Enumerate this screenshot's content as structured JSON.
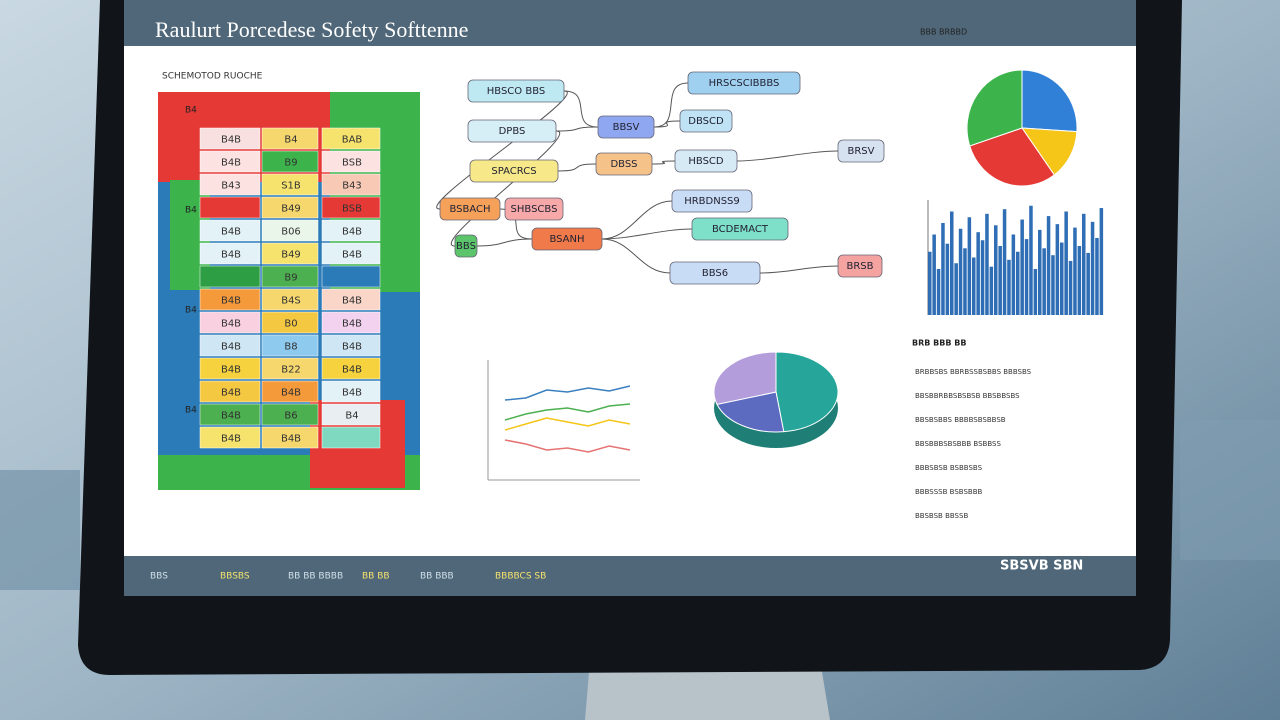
{
  "header": {
    "title": "Raulurt Porcedese Sofety Softtenne"
  },
  "grid": {
    "subtitle": "SCHEMOTOD RUOCHE",
    "side_labels": [
      "B4",
      "B4",
      "B4",
      "B4"
    ],
    "rows": [
      [
        {
          "text": "B4B",
          "color": "#f9e0e0"
        },
        {
          "text": "B4",
          "color": "#f5d76e"
        },
        {
          "text": "BAB",
          "color": "#f5e36e"
        }
      ],
      [
        {
          "text": "B4B",
          "color": "#fde2e2"
        },
        {
          "text": "B9",
          "color": "#3cb44b"
        },
        {
          "text": "BSB",
          "color": "#fde2e2"
        }
      ],
      [
        {
          "text": "B43",
          "color": "#fde2e2"
        },
        {
          "text": "S1B",
          "color": "#f5e36e"
        },
        {
          "text": "B43",
          "color": "#f8c9b5"
        }
      ],
      [
        {
          "color": "#e53935"
        },
        {
          "text": "B49",
          "color": "#f5d76e"
        },
        {
          "text": "BSB",
          "color": "#e53935"
        }
      ],
      [
        {
          "text": "B4B",
          "color": "#e3f2f7"
        },
        {
          "text": "B06",
          "color": "#eaf6ea"
        },
        {
          "text": "B4B",
          "color": "#e3f2f7"
        }
      ],
      [
        {
          "text": "B4B",
          "color": "#e3f2f7"
        },
        {
          "text": "B49",
          "color": "#f5e36e"
        },
        {
          "text": "B4B",
          "color": "#e3f2f7"
        }
      ],
      [
        {
          "color": "#2e9e44"
        },
        {
          "text": "B9",
          "color": "#4caf50"
        },
        {
          "color": "#2b7bb9"
        }
      ],
      [
        {
          "text": "B4B",
          "color": "#f59a3b"
        },
        {
          "text": "B4S",
          "color": "#f5d76e"
        },
        {
          "text": "B4B",
          "color": "#f9d6c8"
        }
      ],
      [
        {
          "text": "B4B",
          "color": "#f8d0e0"
        },
        {
          "text": "B0",
          "color": "#f5c842"
        },
        {
          "text": "B4B",
          "color": "#f3d2ef"
        }
      ],
      [
        {
          "text": "B4B",
          "color": "#cfe6f5"
        },
        {
          "text": "B8",
          "color": "#8ec9ee"
        },
        {
          "text": "B4B",
          "color": "#cfe6f5"
        }
      ],
      [
        {
          "text": "B4B",
          "color": "#f5d23e"
        },
        {
          "text": "B22",
          "color": "#f5d76e"
        },
        {
          "text": "B4B",
          "color": "#f5d23e"
        }
      ],
      [
        {
          "text": "B4B",
          "color": "#f5c842"
        },
        {
          "text": "B4B",
          "color": "#f59a3b"
        },
        {
          "text": "B4B",
          "color": "#e3f2f7"
        }
      ],
      [
        {
          "text": "B4B",
          "color": "#4caf50"
        },
        {
          "text": "B6",
          "color": "#4caf50"
        },
        {
          "text": "B4",
          "color": "#e8eef2"
        }
      ],
      [
        {
          "text": "B4B",
          "color": "#f5e36e"
        },
        {
          "text": "B4B",
          "color": "#f5d76e"
        },
        {
          "color": "#7fd8c0"
        }
      ]
    ]
  },
  "flow": {
    "nodes": [
      {
        "label": "HBSCO BBS",
        "color": "#bfe9f2"
      },
      {
        "label": "DPBS",
        "color": "#d6eef5"
      },
      {
        "label": "SPACRCS",
        "color": "#f7e98a"
      },
      {
        "label": "BSBACH",
        "color": "#f5a15a"
      },
      {
        "label": "SHBSCBS",
        "color": "#f7a8a8"
      },
      {
        "label": "BBS",
        "color": "#5cc46a"
      },
      {
        "label": "BSANH",
        "color": "#f07a4a"
      },
      {
        "label": "BBSV",
        "color": "#8fa6f0"
      },
      {
        "label": "DBSS",
        "color": "#f5c28a"
      },
      {
        "label": "HRSCSCIBBBS",
        "color": "#9fd0f0"
      },
      {
        "label": "DBSCD",
        "color": "#bfe3f5"
      },
      {
        "label": "HBSCD",
        "color": "#d6eaf5"
      },
      {
        "label": "HRBDNSS9",
        "color": "#c9dcf5"
      },
      {
        "label": "BCDEMACT",
        "color": "#7ee0c8"
      },
      {
        "label": "BBS6",
        "color": "#c9dcf5"
      },
      {
        "label": "BRSV",
        "color": "#d6e2f0"
      },
      {
        "label": "BRSB",
        "color": "#f4a3a0"
      }
    ]
  },
  "pie_top": {
    "type": "pie",
    "values": [
      26,
      14,
      30,
      30
    ],
    "colors": [
      "#2f80d6",
      "#f5c518",
      "#e53935",
      "#3cb44b"
    ]
  },
  "side_heading": "BBB BRBBD",
  "bars": {
    "type": "bar",
    "color": "#2f6db5",
    "ylim": [
      0,
      100
    ],
    "values": [
      55,
      70,
      40,
      80,
      62,
      90,
      45,
      75,
      58,
      85,
      50,
      72,
      65,
      88,
      42,
      78,
      60,
      92,
      48,
      70,
      55,
      83,
      66,
      95,
      40,
      74,
      58,
      86,
      52,
      79,
      63,
      90,
      47,
      76,
      60,
      88,
      54,
      81,
      67,
      93
    ]
  },
  "lines": {
    "type": "line",
    "ylim": [
      0,
      100
    ],
    "series": [
      {
        "color": "#3a7fc0",
        "values": [
          70,
          72,
          80,
          78,
          82,
          79,
          84
        ]
      },
      {
        "color": "#4caf50",
        "values": [
          50,
          56,
          60,
          62,
          58,
          64,
          66
        ]
      },
      {
        "color": "#f5c518",
        "values": [
          40,
          46,
          52,
          48,
          44,
          50,
          46
        ]
      },
      {
        "color": "#e57373",
        "values": [
          30,
          26,
          20,
          22,
          18,
          24,
          20
        ]
      }
    ]
  },
  "pie3d": {
    "type": "pie",
    "values": [
      48,
      22,
      30
    ],
    "colors": [
      "#26a69a",
      "#5c6bc0",
      "#b39ddb"
    ]
  },
  "notes": {
    "heading": "BRB BBB BB",
    "lines": [
      "BRBBSBS BBRBSSBSBBS BBBSBS",
      "BBSBBRBBSBSBSB BBSBBSBS",
      "BBSBSBBS BBBBSBSBBSB",
      "BBSBBBSBSBBB BSBBSS",
      "BBBSBSB BSBBSBS",
      "BBBSSSB BSBSBBB",
      "BBSBSB BBSSB"
    ]
  },
  "footer": {
    "items": [
      "BBS",
      "BBSBS",
      "BB BB BBBB",
      "BB BB",
      "BB BBB",
      "BBBBCS SB"
    ],
    "brand": "SBSVB SBN"
  }
}
